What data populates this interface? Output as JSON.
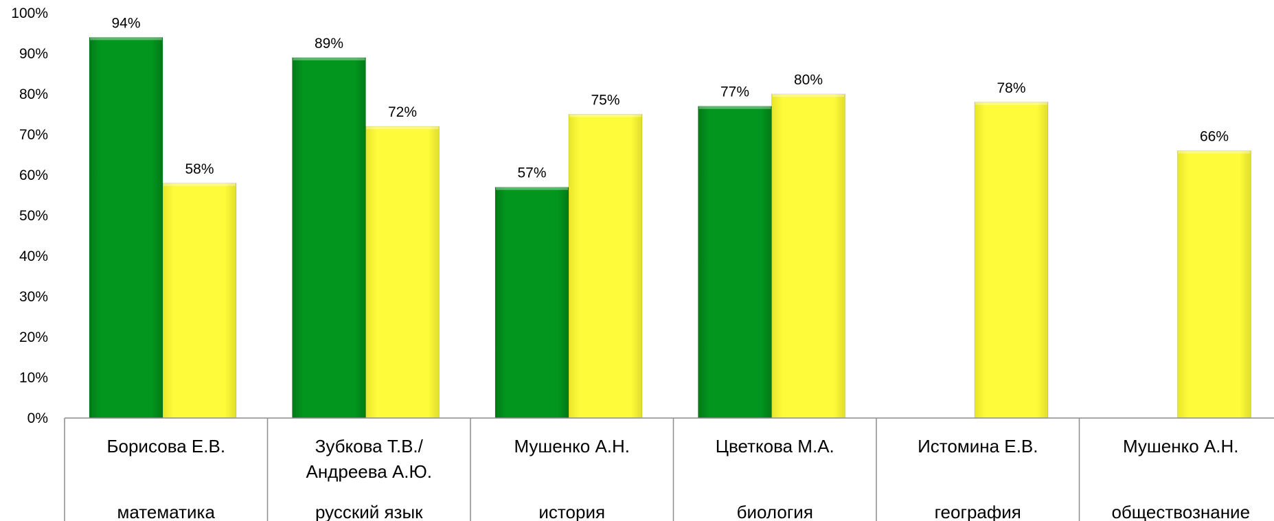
{
  "chart_data": {
    "type": "bar",
    "categories": [
      {
        "lines": [
          "Борисова Е.В."
        ],
        "subject": "математика"
      },
      {
        "lines": [
          "Зубкова Т.В./",
          "Андреева А.Ю."
        ],
        "subject": "русский язык"
      },
      {
        "lines": [
          "Мушенко А.Н."
        ],
        "subject": "история"
      },
      {
        "lines": [
          "Цветкова М.А."
        ],
        "subject": "биология"
      },
      {
        "lines": [
          "Истомина Е.В."
        ],
        "subject": "география"
      },
      {
        "lines": [
          "Мушенко А.Н."
        ],
        "subject": "обществознание"
      }
    ],
    "series": [
      {
        "color": "#02961e",
        "values": [
          94,
          89,
          57,
          77,
          null,
          null
        ],
        "labels": [
          "94%",
          "89%",
          "57%",
          "77%",
          "",
          ""
        ]
      },
      {
        "color": "#fdfb3a",
        "values": [
          58,
          72,
          75,
          80,
          78,
          66
        ],
        "labels": [
          "58%",
          "72%",
          "75%",
          "80%",
          "78%",
          "66%"
        ]
      }
    ],
    "yticks": [
      "0%",
      "10%",
      "20%",
      "30%",
      "40%",
      "50%",
      "60%",
      "70%",
      "80%",
      "90%",
      "100%"
    ],
    "ylim": [
      0,
      100
    ],
    "grid": false,
    "legend": "none"
  }
}
